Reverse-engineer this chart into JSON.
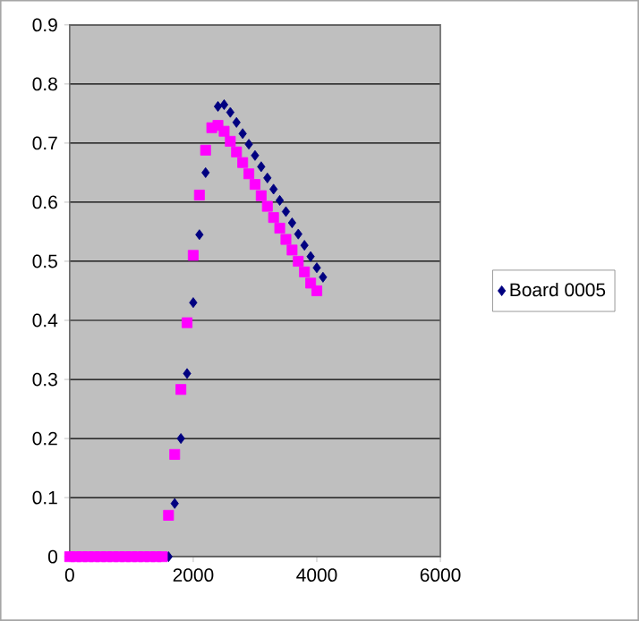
{
  "chart_data": {
    "type": "scatter",
    "xlim": [
      0,
      6000
    ],
    "ylim": [
      0,
      0.9
    ],
    "xticks": [
      0,
      2000,
      4000,
      6000
    ],
    "yticks": [
      0,
      0.1,
      0.2,
      0.3,
      0.4,
      0.5,
      0.6,
      0.7,
      0.8,
      0.9
    ],
    "grid": "y",
    "legend": "right",
    "series": [
      {
        "name": "Board 0005",
        "color": "#000080",
        "marker": "diamond",
        "x": [
          1600,
          1700,
          1800,
          1900,
          2000,
          2100,
          2200,
          2400,
          2500,
          2600,
          2700,
          2800,
          2900,
          3000,
          3100,
          3200,
          3300,
          3400,
          3500,
          3600,
          3700,
          3800,
          3900,
          4000,
          4100
        ],
        "values": [
          0,
          0.09,
          0.2,
          0.31,
          0.43,
          0.545,
          0.65,
          0.762,
          0.765,
          0.752,
          0.735,
          0.716,
          0.698,
          0.679,
          0.66,
          0.641,
          0.622,
          0.603,
          0.584,
          0.565,
          0.546,
          0.527,
          0.508,
          0.489,
          0.473
        ]
      },
      {
        "color": "#ff00ff",
        "marker": "square",
        "x": [
          0,
          100,
          200,
          300,
          400,
          500,
          600,
          700,
          800,
          900,
          1000,
          1100,
          1200,
          1300,
          1400,
          1500,
          1600,
          1700,
          1800,
          1900,
          2000,
          2100,
          2200,
          2300,
          2400,
          2500,
          2600,
          2700,
          2800,
          2900,
          3000,
          3100,
          3200,
          3300,
          3400,
          3500,
          3600,
          3700,
          3800,
          3900,
          4000
        ],
        "values": [
          0,
          0,
          0,
          0,
          0,
          0,
          0,
          0,
          0,
          0,
          0,
          0,
          0,
          0,
          0,
          0,
          0.07,
          0.173,
          0.283,
          0.396,
          0.51,
          0.612,
          0.688,
          0.726,
          0.73,
          0.72,
          0.703,
          0.685,
          0.667,
          0.648,
          0.63,
          0.611,
          0.593,
          0.574,
          0.556,
          0.537,
          0.519,
          0.5,
          0.482,
          0.463,
          0.45
        ]
      }
    ]
  }
}
